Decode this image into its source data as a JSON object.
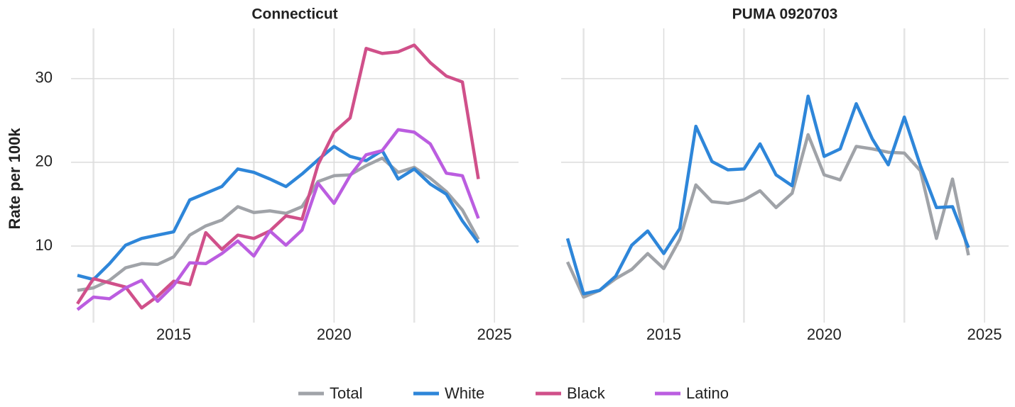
{
  "chart_data": [
    {
      "type": "line",
      "title": "Connecticut",
      "y_label": "Rate per 100k",
      "x": [
        2012,
        2012.5,
        2013,
        2013.5,
        2014,
        2014.5,
        2015,
        2015.5,
        2016,
        2016.5,
        2017,
        2017.5,
        2018,
        2018.5,
        2019,
        2019.5,
        2020,
        2020.5,
        2021,
        2021.5,
        2022,
        2022.5,
        2023,
        2023.5,
        2024,
        2024.5
      ],
      "series": [
        {
          "name": "Total",
          "color": "#a0a3a8",
          "values": [
            4.7,
            5.0,
            5.9,
            7.4,
            7.9,
            7.8,
            8.7,
            11.3,
            12.4,
            13.1,
            14.7,
            14.0,
            14.2,
            13.9,
            14.7,
            17.7,
            18.4,
            18.5,
            19.6,
            20.5,
            18.8,
            19.4,
            18.1,
            16.5,
            14.3,
            10.8
          ]
        },
        {
          "name": "White",
          "color": "#2e86d9",
          "values": [
            6.5,
            6.0,
            7.9,
            10.1,
            10.9,
            11.3,
            11.7,
            15.5,
            16.3,
            17.1,
            19.2,
            18.8,
            18.0,
            17.1,
            18.6,
            20.3,
            21.9,
            20.7,
            20.2,
            21.4,
            18.0,
            19.2,
            17.4,
            16.2,
            13.0,
            10.4
          ]
        },
        {
          "name": "Black",
          "color": "#d0508a",
          "values": [
            3.1,
            6.1,
            5.6,
            5.1,
            2.6,
            4.0,
            5.8,
            5.4,
            11.6,
            9.6,
            11.3,
            10.9,
            11.8,
            13.6,
            13.2,
            19.7,
            23.6,
            25.3,
            33.6,
            33.0,
            33.2,
            34.0,
            31.9,
            30.3,
            29.6,
            18.0
          ]
        },
        {
          "name": "Latino",
          "color": "#bb5de0",
          "values": [
            2.4,
            3.9,
            3.7,
            5.0,
            5.9,
            3.4,
            5.3,
            8.0,
            7.9,
            9.1,
            10.6,
            8.8,
            11.8,
            10.1,
            11.9,
            17.5,
            15.1,
            18.4,
            20.9,
            21.4,
            23.9,
            23.6,
            22.2,
            18.7,
            18.4,
            13.3
          ]
        }
      ],
      "xlim": [
        2011.8,
        2025.75
      ],
      "xticks": [
        2015,
        2020,
        2025
      ],
      "x_minor_grid": [
        2012.5,
        2017.5,
        2022.5
      ],
      "ylim": [
        0.85,
        36
      ],
      "yticks": [
        10,
        20,
        30
      ],
      "grid": true
    },
    {
      "type": "line",
      "title": "PUMA 0920703",
      "x": [
        2012,
        2012.5,
        2013,
        2013.5,
        2014,
        2014.5,
        2015,
        2015.5,
        2016,
        2016.5,
        2017,
        2017.5,
        2018,
        2018.5,
        2019,
        2019.5,
        2020,
        2020.5,
        2021,
        2021.5,
        2022,
        2022.5,
        2023,
        2023.5,
        2024,
        2024.5
      ],
      "series": [
        {
          "name": "Total",
          "color": "#a0a3a8",
          "values": [
            8.1,
            3.9,
            4.7,
            6.1,
            7.2,
            9.1,
            7.3,
            10.8,
            17.3,
            15.3,
            15.1,
            15.5,
            16.6,
            14.6,
            16.3,
            23.3,
            18.5,
            17.9,
            21.9,
            21.6,
            21.2,
            21.1,
            19.0,
            10.9,
            18.0,
            8.9
          ]
        },
        {
          "name": "White",
          "color": "#2e86d9",
          "values": [
            10.9,
            4.3,
            4.7,
            6.4,
            10.1,
            11.8,
            9.1,
            12.1,
            24.3,
            20.1,
            19.1,
            19.2,
            22.2,
            18.5,
            17.2,
            27.9,
            20.7,
            21.6,
            27.0,
            22.8,
            19.7,
            25.4,
            19.6,
            14.6,
            14.7,
            9.8
          ]
        }
      ],
      "xlim": [
        2011.8,
        2025.75
      ],
      "xticks": [
        2015,
        2020,
        2025
      ],
      "x_minor_grid": [
        2012.5,
        2017.5,
        2022.5
      ],
      "ylim": [
        0.85,
        36
      ],
      "yticks": [
        10,
        20,
        30
      ],
      "grid": true
    }
  ]
}
